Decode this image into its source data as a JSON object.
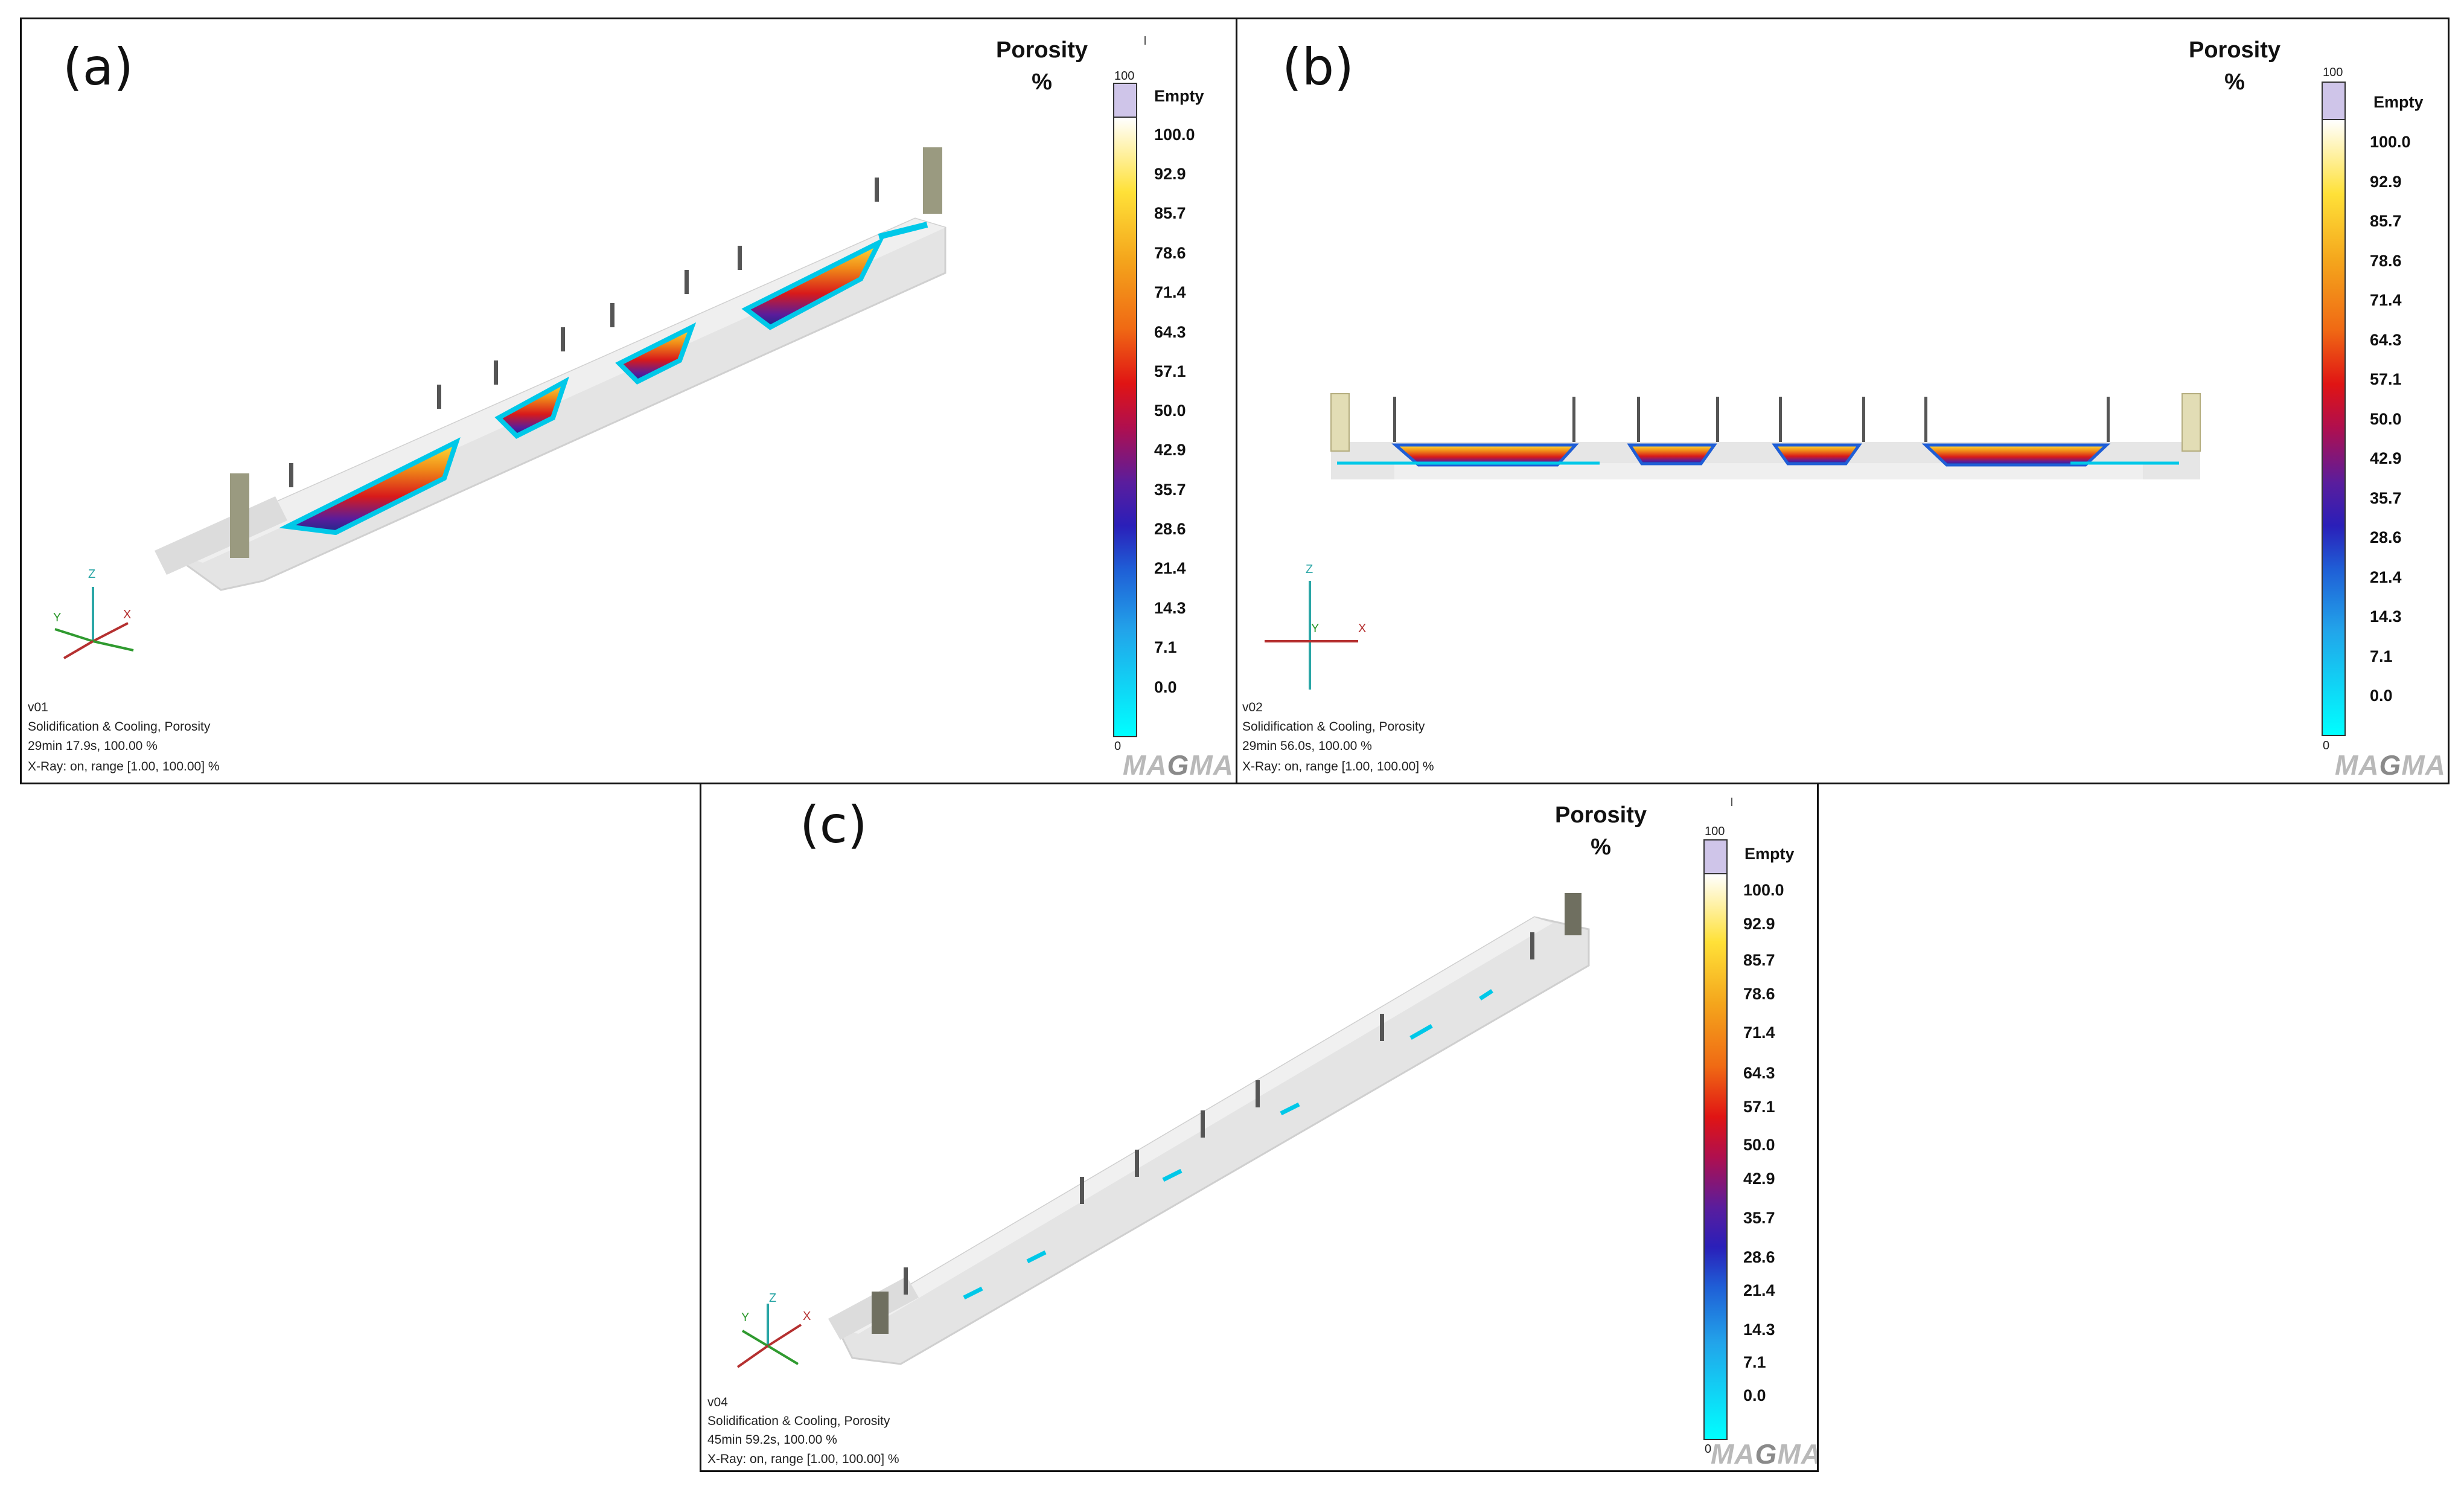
{
  "colors": {
    "casting": "#e6e6e6",
    "empty": "#cfc5e9",
    "cyan_low": "#00ffff",
    "porosity_high": "#e01414"
  },
  "panels": [
    {
      "id": "a",
      "letter": "(a)",
      "legend": {
        "title": "Porosity",
        "unit": "%",
        "range_max": "100",
        "range_min": "0",
        "empty_label": "Empty",
        "ticks": [
          "100.0",
          "92.9",
          "85.7",
          "78.6",
          "71.4",
          "64.3",
          "57.1",
          "50.0",
          "42.9",
          "35.7",
          "28.6",
          "21.4",
          "14.3",
          "7.1",
          "0.0"
        ]
      },
      "info": [
        "v01",
        "Solidification & Cooling, Porosity",
        "29min 17.9s, 100.00 %",
        "X-Ray: on, range [1.00, 100.00] %"
      ],
      "axes": {
        "z": "Z",
        "x": "X",
        "y": "Y"
      },
      "logo": {
        "prefix": "MA",
        "mid": "G",
        "suffix": "MA"
      }
    },
    {
      "id": "b",
      "letter": "(b)",
      "legend": {
        "title": "Porosity",
        "unit": "%",
        "range_max": "100",
        "range_min": "0",
        "empty_label": "Empty",
        "ticks": [
          "100.0",
          "92.9",
          "85.7",
          "78.6",
          "71.4",
          "64.3",
          "57.1",
          "50.0",
          "42.9",
          "35.7",
          "28.6",
          "21.4",
          "14.3",
          "7.1",
          "0.0"
        ]
      },
      "info": [
        "v02",
        "Solidification & Cooling, Porosity",
        "29min 56.0s, 100.00 %",
        "X-Ray: on, range [1.00, 100.00] %"
      ],
      "axes": {
        "z": "Z",
        "x": "X",
        "y": "Y"
      },
      "logo": {
        "prefix": "MA",
        "mid": "G",
        "suffix": "MA"
      }
    },
    {
      "id": "c",
      "letter": "(c)",
      "legend": {
        "title": "Porosity",
        "unit": "%",
        "range_max": "100",
        "range_min": "0",
        "empty_label": "Empty",
        "ticks": [
          "100.0",
          "92.9",
          "85.7",
          "78.6",
          "71.4",
          "64.3",
          "57.1",
          "50.0",
          "42.9",
          "35.7",
          "28.6",
          "21.4",
          "14.3",
          "7.1",
          "0.0"
        ]
      },
      "info": [
        "v04",
        "Solidification & Cooling, Porosity",
        "45min 59.2s, 100.00 %",
        "X-Ray: on, range [1.00, 100.00] %"
      ],
      "axes": {
        "z": "Z",
        "x": "X",
        "y": "Y"
      },
      "logo": {
        "prefix": "MA",
        "mid": "G",
        "suffix": "MA"
      }
    }
  ]
}
